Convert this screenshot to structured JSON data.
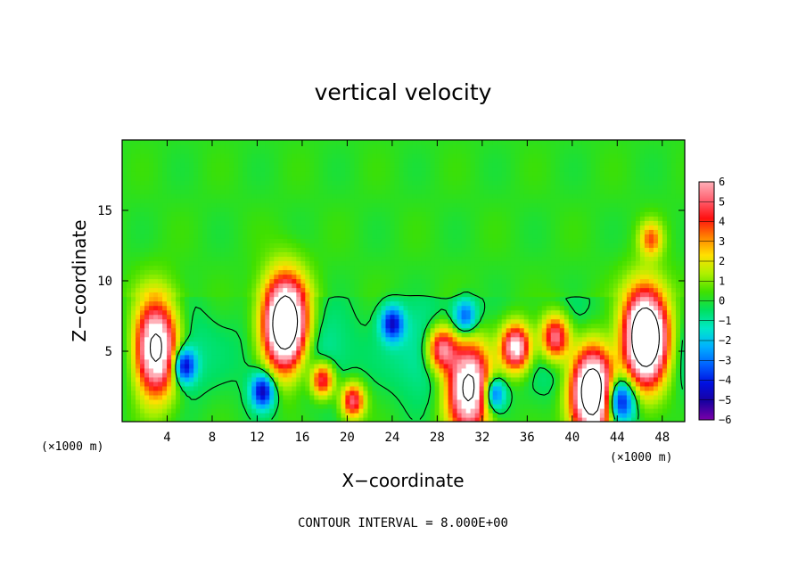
{
  "chart_data": {
    "type": "heatmap",
    "title": "vertical velocity",
    "xlabel": "X−coordinate",
    "ylabel": "Z−coordinate",
    "x_unit": "(×1000 m)",
    "z_unit": "(×1000 m)",
    "xlim": [
      0,
      50
    ],
    "ylim": [
      0,
      20
    ],
    "x_ticks": [
      4,
      8,
      12,
      16,
      20,
      24,
      28,
      32,
      36,
      40,
      44,
      48
    ],
    "y_ticks": [
      5,
      10,
      15
    ],
    "colorbar": {
      "min": -6,
      "max": 6,
      "ticks": [
        6,
        5,
        4,
        3,
        2,
        1,
        0,
        -1,
        -2,
        -3,
        -4,
        -5,
        -6
      ]
    },
    "contour_interval": "CONTOUR INTERVAL = 8.000E+00",
    "features": [
      {
        "x": 14.5,
        "z": 6.8,
        "w": 12,
        "kind": "updraft"
      },
      {
        "x": 46.5,
        "z": 6.0,
        "w": 12,
        "kind": "updraft"
      },
      {
        "x": 47.0,
        "z": 13.0,
        "w": 3.2,
        "kind": "updraft"
      },
      {
        "x": 41.8,
        "z": 2.3,
        "w": 11,
        "kind": "updraft"
      },
      {
        "x": 3.0,
        "z": 5.2,
        "w": 10,
        "kind": "updraft"
      },
      {
        "x": 30.8,
        "z": 2.6,
        "w": 9,
        "kind": "updraft"
      },
      {
        "x": 35.0,
        "z": 5.3,
        "w": 7,
        "kind": "updraft"
      },
      {
        "x": 38.5,
        "z": 6.0,
        "w": 6,
        "kind": "updraft"
      },
      {
        "x": 28.4,
        "z": 5.2,
        "w": 6,
        "kind": "updraft"
      },
      {
        "x": 17.8,
        "z": 3.0,
        "w": 5,
        "kind": "updraft"
      },
      {
        "x": 20.5,
        "z": 1.5,
        "w": 5,
        "kind": "updraft"
      },
      {
        "x": 12.5,
        "z": 2.2,
        "w": -5,
        "kind": "downdraft"
      },
      {
        "x": 44.2,
        "z": 1.5,
        "w": -6,
        "kind": "downdraft"
      },
      {
        "x": 24.0,
        "z": 7.0,
        "w": -4.5,
        "kind": "downdraft"
      },
      {
        "x": 30.5,
        "z": 7.5,
        "w": -3.5,
        "kind": "downdraft"
      },
      {
        "x": 33.0,
        "z": 2.0,
        "w": -4.5,
        "kind": "downdraft"
      },
      {
        "x": 5.5,
        "z": 4.0,
        "w": -5,
        "kind": "downdraft"
      }
    ]
  }
}
